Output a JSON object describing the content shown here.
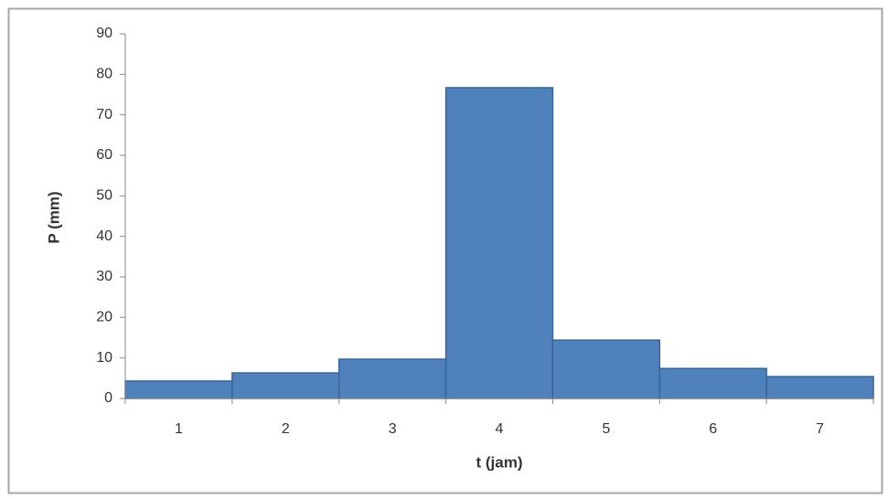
{
  "chart_data": {
    "type": "bar",
    "x_label": "t (jam)",
    "y_label": "P (mm)",
    "categories": [
      "1",
      "2",
      "3",
      "4",
      "5",
      "6",
      "7"
    ],
    "values": [
      4.3,
      6.3,
      9.7,
      76.7,
      14.4,
      7.4,
      5.4
    ],
    "color": "#4f81bd",
    "edge_color": "#3a6493",
    "ylim": [
      0,
      90
    ],
    "yticks": [
      0,
      10,
      20,
      30,
      40,
      50,
      60,
      70,
      80,
      90
    ],
    "grid": false
  }
}
